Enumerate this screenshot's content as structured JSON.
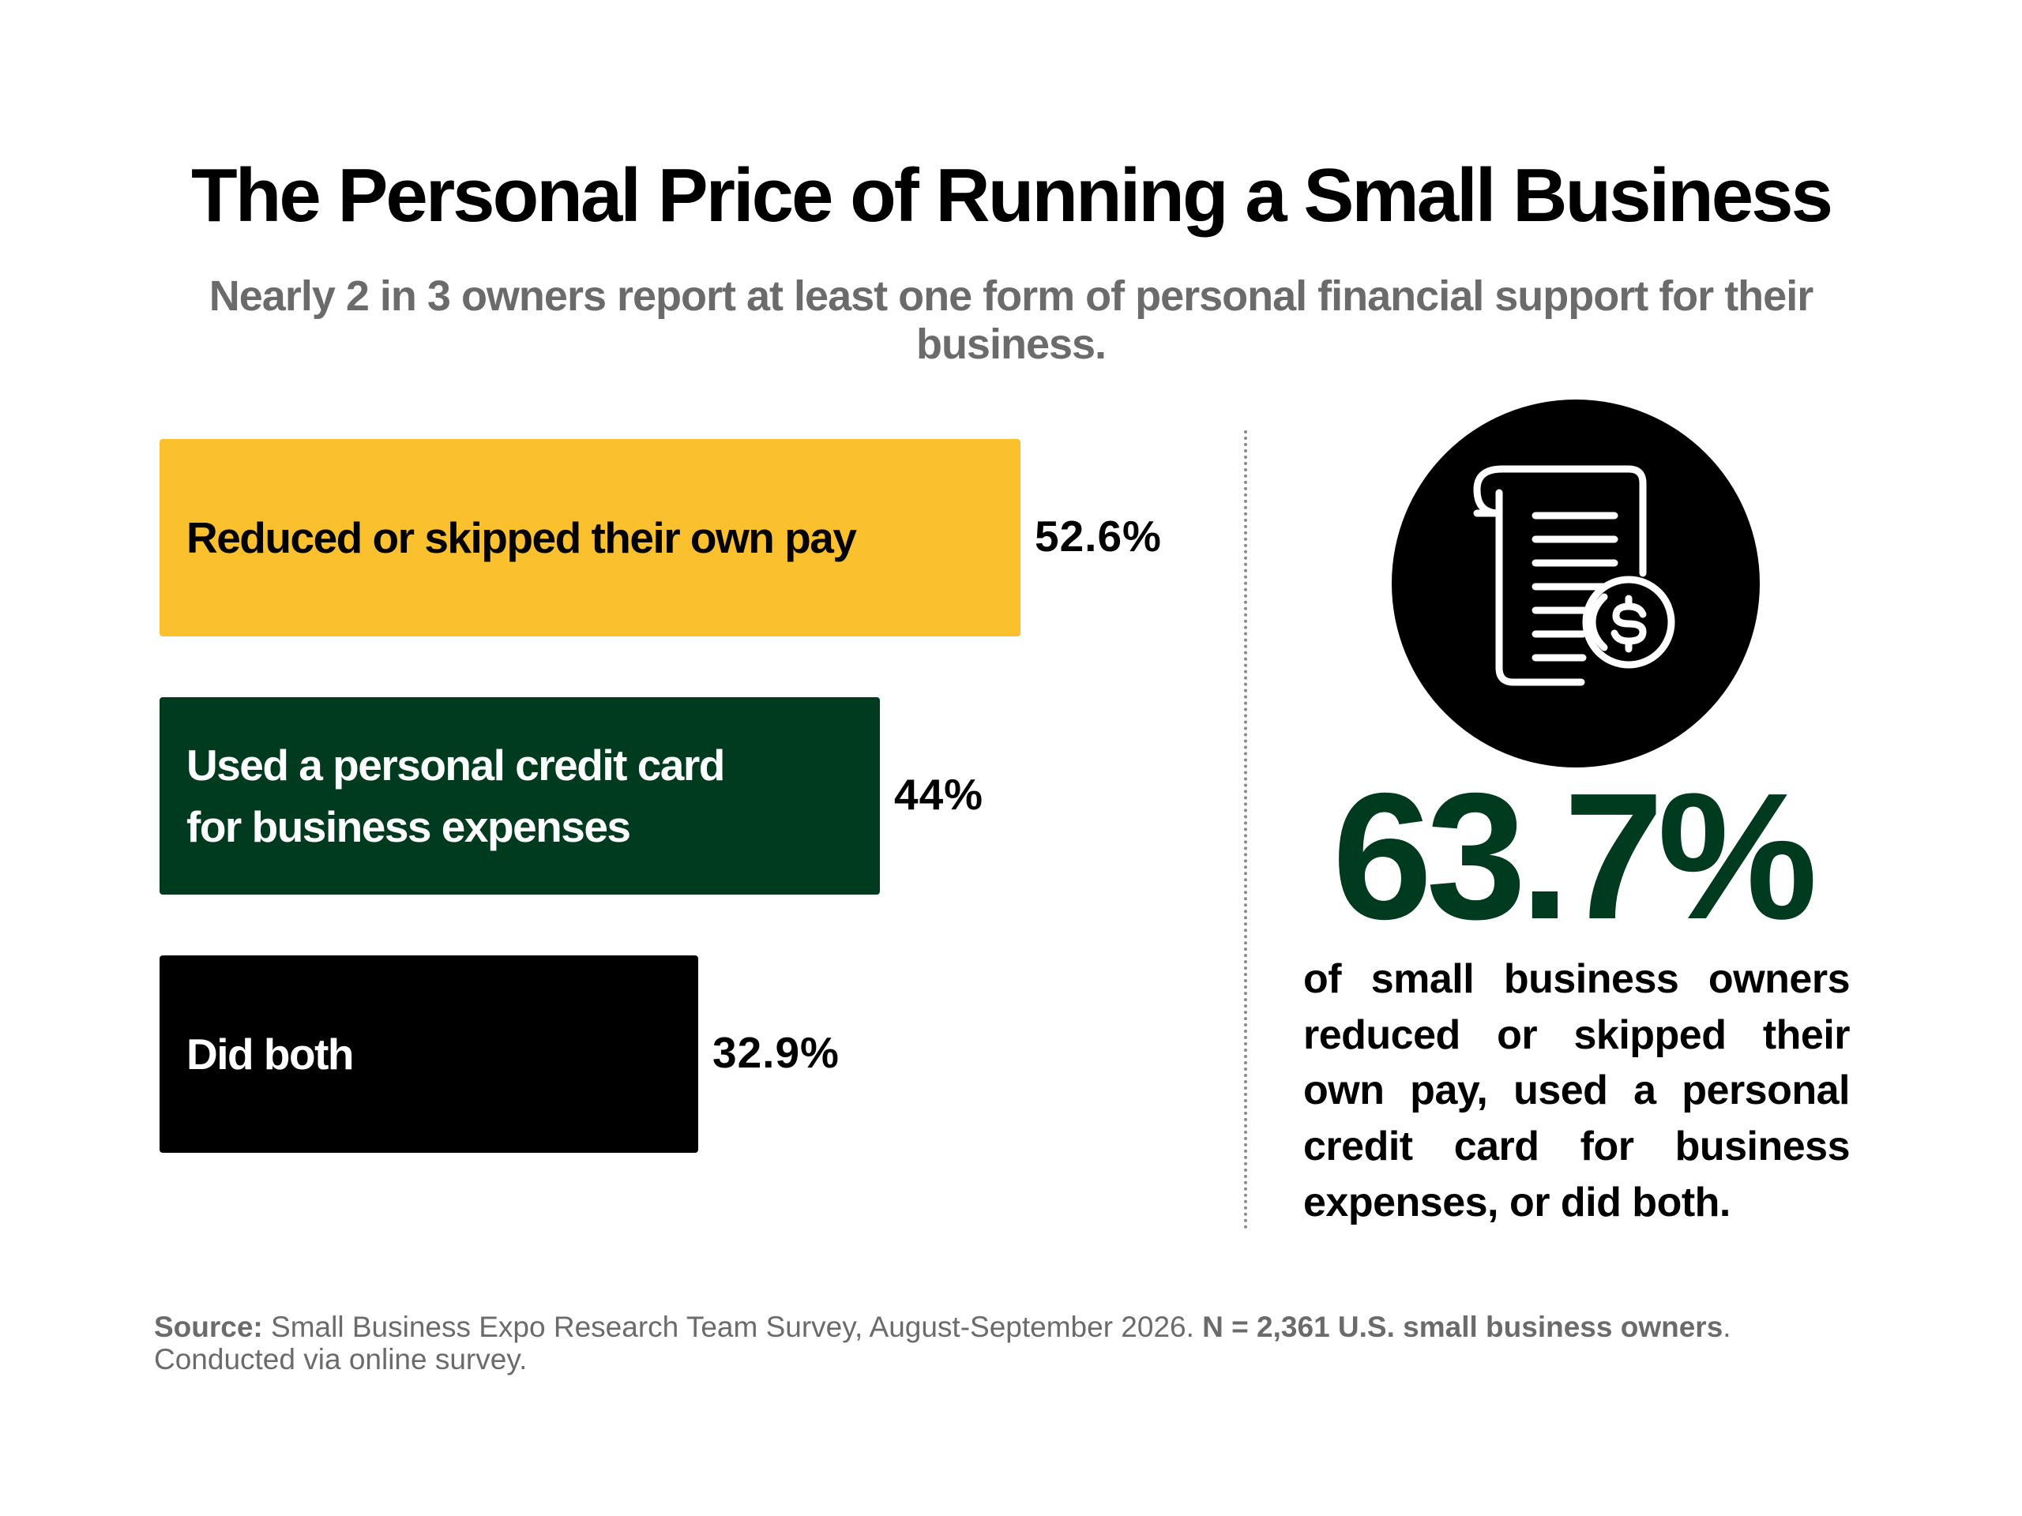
{
  "title": "The Personal Price of Running a Small Business",
  "subtitle": "Nearly 2 in 3 owners report at least one form of personal financial support for their business.",
  "chart_data": {
    "type": "bar",
    "orientation": "horizontal",
    "categories": [
      "Reduced or skipped their own pay",
      "Used a personal credit card for business expenses",
      "Did both"
    ],
    "category_lines": [
      [
        "Reduced or skipped their own pay"
      ],
      [
        "Used a personal credit card",
        "for business expenses"
      ],
      [
        "Did both"
      ]
    ],
    "values": [
      52.6,
      44,
      32.9
    ],
    "value_labels": [
      "52.6%",
      "44%",
      "32.9%"
    ],
    "bar_colors": [
      "#FBC02D",
      "#003A1F",
      "#000000"
    ],
    "label_colors": [
      "#000000",
      "#FFFFFF",
      "#FFFFFF"
    ],
    "xlim": [
      0,
      52.6
    ],
    "grid": false,
    "legend": "none"
  },
  "highlight": {
    "icon": "receipt-dollar-icon",
    "value": "63.7%",
    "value_color": "#003A1F",
    "description": "of small business owners reduced or skipped their own pay, used a personal credit card for business expenses, or did both."
  },
  "source": {
    "label": "Source:",
    "text": " Small Business Expo Research Team Survey, August-September 2026. ",
    "sample": "N = 2,361 U.S. small business owners",
    "end": ".",
    "line2": "Conducted via online survey."
  }
}
